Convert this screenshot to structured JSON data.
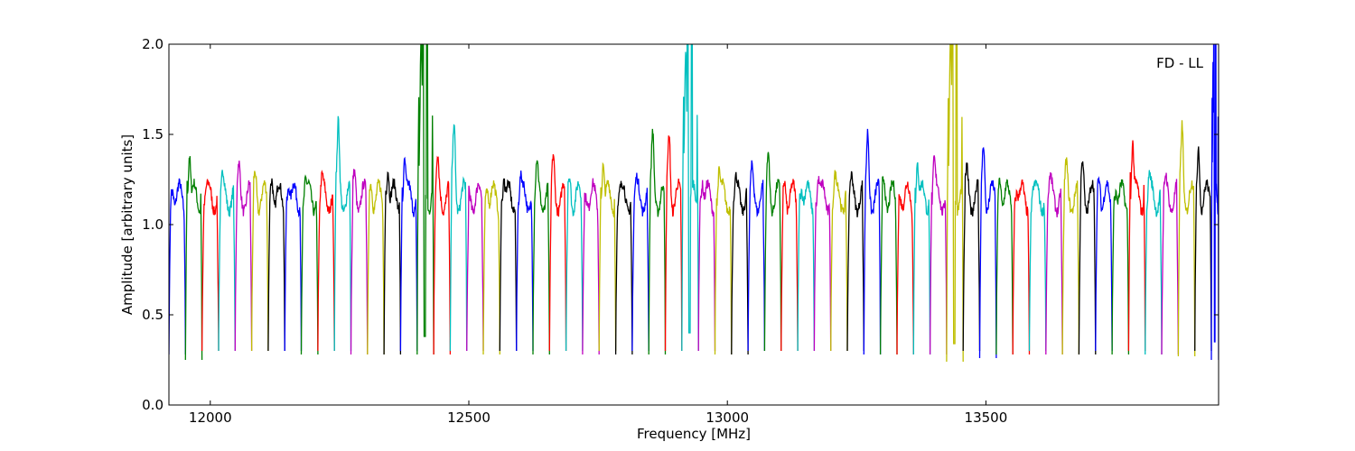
{
  "chart_data": {
    "type": "line",
    "title": "",
    "xlabel": "Frequency [MHz]",
    "ylabel": "Amplitude [arbitrary units]",
    "xlim": [
      11920,
      13950
    ],
    "ylim": [
      0.0,
      2.0
    ],
    "xticks": [
      12000,
      12500,
      13000,
      13500
    ],
    "yticks": [
      0.0,
      0.5,
      1.0,
      1.5,
      2.0
    ],
    "ytick_labels": [
      "0.0",
      "0.5",
      "1.0",
      "1.5",
      "2.0"
    ],
    "xtick_labels": [
      "12000",
      "12500",
      "13000",
      "13500"
    ],
    "grid": false,
    "legend": "none",
    "annotation": {
      "text": "FD - LL",
      "position": "top-right"
    },
    "color_cycle": [
      "#0000ff",
      "#008000",
      "#ff0000",
      "#00bfbf",
      "#bf00bf",
      "#bfbf00",
      "#000000"
    ],
    "channel_width_mhz": 32,
    "series": [
      {
        "name": "",
        "color": "#0000ff",
        "x_start": 11920,
        "x_end": 11952,
        "peak": 1.25,
        "min": 0.28
      },
      {
        "name": "",
        "color": "#008000",
        "x_start": 11952,
        "x_end": 11984,
        "peak": 1.45,
        "min": 0.25
      },
      {
        "name": "",
        "color": "#ff0000",
        "x_start": 11984,
        "x_end": 12016,
        "peak": 1.2,
        "min": 0.3
      },
      {
        "name": "",
        "color": "#00bfbf",
        "x_start": 12016,
        "x_end": 12048,
        "peak": 1.23,
        "min": 0.3
      },
      {
        "name": "",
        "color": "#bf00bf",
        "x_start": 12048,
        "x_end": 12080,
        "peak": 1.27,
        "min": 0.3
      },
      {
        "name": "",
        "color": "#bfbf00",
        "x_start": 12080,
        "x_end": 12112,
        "peak": 1.27,
        "min": 0.3
      },
      {
        "name": "",
        "color": "#000000",
        "x_start": 12112,
        "x_end": 12144,
        "peak": 1.3,
        "min": 0.3
      },
      {
        "name": "",
        "color": "#0000ff",
        "x_start": 12144,
        "x_end": 12176,
        "peak": 1.28,
        "min": 0.3
      },
      {
        "name": "",
        "color": "#008000",
        "x_start": 12176,
        "x_end": 12208,
        "peak": 1.27,
        "min": 0.28
      },
      {
        "name": "",
        "color": "#ff0000",
        "x_start": 12208,
        "x_end": 12240,
        "peak": 1.22,
        "min": 0.3
      },
      {
        "name": "",
        "color": "#00bfbf",
        "x_start": 12240,
        "x_end": 12272,
        "peak": 1.5,
        "min": 0.3
      },
      {
        "name": "",
        "color": "#bf00bf",
        "x_start": 12272,
        "x_end": 12304,
        "peak": 1.25,
        "min": 0.28
      },
      {
        "name": "",
        "color": "#bfbf00",
        "x_start": 12304,
        "x_end": 12336,
        "peak": 1.25,
        "min": 0.28
      },
      {
        "name": "",
        "color": "#000000",
        "x_start": 12336,
        "x_end": 12368,
        "peak": 1.38,
        "min": 0.28
      },
      {
        "name": "",
        "color": "#0000ff",
        "x_start": 12368,
        "x_end": 12400,
        "peak": 1.4,
        "min": 0.3
      },
      {
        "name": "",
        "color": "#008000",
        "x_start": 12400,
        "x_end": 12432,
        "peak": 2.0,
        "min": 0.28,
        "spike": true
      },
      {
        "name": "",
        "color": "#ff0000",
        "x_start": 12432,
        "x_end": 12464,
        "peak": 1.32,
        "min": 0.28
      },
      {
        "name": "",
        "color": "#00bfbf",
        "x_start": 12464,
        "x_end": 12496,
        "peak": 1.52,
        "min": 0.3
      },
      {
        "name": "",
        "color": "#bf00bf",
        "x_start": 12496,
        "x_end": 12528,
        "peak": 1.15,
        "min": 0.3
      },
      {
        "name": "",
        "color": "#bfbf00",
        "x_start": 12528,
        "x_end": 12560,
        "peak": 1.25,
        "min": 0.28
      },
      {
        "name": "",
        "color": "#000000",
        "x_start": 12560,
        "x_end": 12592,
        "peak": 1.3,
        "min": 0.3
      },
      {
        "name": "",
        "color": "#0000ff",
        "x_start": 12592,
        "x_end": 12624,
        "peak": 1.25,
        "min": 0.3
      },
      {
        "name": "",
        "color": "#008000",
        "x_start": 12624,
        "x_end": 12656,
        "peak": 1.3,
        "min": 0.28
      },
      {
        "name": "",
        "color": "#ff0000",
        "x_start": 12656,
        "x_end": 12688,
        "peak": 1.32,
        "min": 0.3
      },
      {
        "name": "",
        "color": "#00bfbf",
        "x_start": 12688,
        "x_end": 12720,
        "peak": 1.25,
        "min": 0.3
      },
      {
        "name": "",
        "color": "#bf00bf",
        "x_start": 12720,
        "x_end": 12752,
        "peak": 1.2,
        "min": 0.28
      },
      {
        "name": "",
        "color": "#bfbf00",
        "x_start": 12752,
        "x_end": 12784,
        "peak": 1.4,
        "min": 0.3
      },
      {
        "name": "",
        "color": "#000000",
        "x_start": 12784,
        "x_end": 12816,
        "peak": 1.2,
        "min": 0.28
      },
      {
        "name": "",
        "color": "#0000ff",
        "x_start": 12816,
        "x_end": 12848,
        "peak": 1.2,
        "min": 0.3
      },
      {
        "name": "",
        "color": "#008000",
        "x_start": 12848,
        "x_end": 12880,
        "peak": 1.45,
        "min": 0.28
      },
      {
        "name": "",
        "color": "#ff0000",
        "x_start": 12880,
        "x_end": 12912,
        "peak": 1.47,
        "min": 0.3
      },
      {
        "name": "",
        "color": "#00bfbf",
        "x_start": 12912,
        "x_end": 12944,
        "peak": 2.0,
        "min": 0.3,
        "spike": true
      },
      {
        "name": "",
        "color": "#bf00bf",
        "x_start": 12944,
        "x_end": 12976,
        "peak": 1.3,
        "min": 0.3
      },
      {
        "name": "",
        "color": "#bfbf00",
        "x_start": 12976,
        "x_end": 13008,
        "peak": 1.33,
        "min": 0.28
      },
      {
        "name": "",
        "color": "#000000",
        "x_start": 13008,
        "x_end": 13040,
        "peak": 1.22,
        "min": 0.28
      },
      {
        "name": "",
        "color": "#0000ff",
        "x_start": 13040,
        "x_end": 13072,
        "peak": 1.25,
        "min": 0.3
      },
      {
        "name": "",
        "color": "#008000",
        "x_start": 13072,
        "x_end": 13104,
        "peak": 1.35,
        "min": 0.3
      },
      {
        "name": "",
        "color": "#ff0000",
        "x_start": 13104,
        "x_end": 13136,
        "peak": 1.25,
        "min": 0.3
      },
      {
        "name": "",
        "color": "#00bfbf",
        "x_start": 13136,
        "x_end": 13168,
        "peak": 1.27,
        "min": 0.3
      },
      {
        "name": "",
        "color": "#bf00bf",
        "x_start": 13168,
        "x_end": 13200,
        "peak": 1.3,
        "min": 0.3
      },
      {
        "name": "",
        "color": "#bfbf00",
        "x_start": 13200,
        "x_end": 13232,
        "peak": 1.25,
        "min": 0.3
      },
      {
        "name": "",
        "color": "#000000",
        "x_start": 13232,
        "x_end": 13264,
        "peak": 1.2,
        "min": 0.3
      },
      {
        "name": "",
        "color": "#0000ff",
        "x_start": 13264,
        "x_end": 13296,
        "peak": 1.45,
        "min": 0.28
      },
      {
        "name": "",
        "color": "#008000",
        "x_start": 13296,
        "x_end": 13328,
        "peak": 1.25,
        "min": 0.28
      },
      {
        "name": "",
        "color": "#ff0000",
        "x_start": 13328,
        "x_end": 13360,
        "peak": 1.2,
        "min": 0.28
      },
      {
        "name": "",
        "color": "#00bfbf",
        "x_start": 13360,
        "x_end": 13392,
        "peak": 1.4,
        "min": 0.28
      },
      {
        "name": "",
        "color": "#bf00bf",
        "x_start": 13392,
        "x_end": 13424,
        "peak": 1.37,
        "min": 0.28
      },
      {
        "name": "",
        "color": "#bfbf00",
        "x_start": 13424,
        "x_end": 13456,
        "peak": 2.0,
        "min": 0.24,
        "spike": true
      },
      {
        "name": "",
        "color": "#000000",
        "x_start": 13456,
        "x_end": 13488,
        "peak": 1.25,
        "min": 0.3
      },
      {
        "name": "",
        "color": "#0000ff",
        "x_start": 13488,
        "x_end": 13520,
        "peak": 1.43,
        "min": 0.26
      },
      {
        "name": "",
        "color": "#008000",
        "x_start": 13520,
        "x_end": 13552,
        "peak": 1.3,
        "min": 0.28
      },
      {
        "name": "",
        "color": "#ff0000",
        "x_start": 13552,
        "x_end": 13584,
        "peak": 1.25,
        "min": 0.28
      },
      {
        "name": "",
        "color": "#00bfbf",
        "x_start": 13584,
        "x_end": 13616,
        "peak": 1.23,
        "min": 0.3
      },
      {
        "name": "",
        "color": "#bf00bf",
        "x_start": 13616,
        "x_end": 13648,
        "peak": 1.22,
        "min": 0.28
      },
      {
        "name": "",
        "color": "#bfbf00",
        "x_start": 13648,
        "x_end": 13680,
        "peak": 1.28,
        "min": 0.28
      },
      {
        "name": "",
        "color": "#000000",
        "x_start": 13680,
        "x_end": 13712,
        "peak": 1.32,
        "min": 0.28
      },
      {
        "name": "",
        "color": "#0000ff",
        "x_start": 13712,
        "x_end": 13744,
        "peak": 1.28,
        "min": 0.3
      },
      {
        "name": "",
        "color": "#008000",
        "x_start": 13744,
        "x_end": 13776,
        "peak": 1.25,
        "min": 0.28
      },
      {
        "name": "",
        "color": "#ff0000",
        "x_start": 13776,
        "x_end": 13808,
        "peak": 1.5,
        "min": 0.3
      },
      {
        "name": "",
        "color": "#00bfbf",
        "x_start": 13808,
        "x_end": 13840,
        "peak": 1.25,
        "min": 0.28
      },
      {
        "name": "",
        "color": "#bf00bf",
        "x_start": 13840,
        "x_end": 13872,
        "peak": 1.2,
        "min": 0.28
      },
      {
        "name": "",
        "color": "#bfbf00",
        "x_start": 13872,
        "x_end": 13904,
        "peak": 1.5,
        "min": 0.27
      },
      {
        "name": "",
        "color": "#000000",
        "x_start": 13904,
        "x_end": 13936,
        "peak": 1.42,
        "min": 0.3
      },
      {
        "name": "",
        "color": "#0000ff",
        "x_start": 13936,
        "x_end": 13950,
        "peak": 2.0,
        "min": 0.25,
        "spike": true
      }
    ]
  }
}
